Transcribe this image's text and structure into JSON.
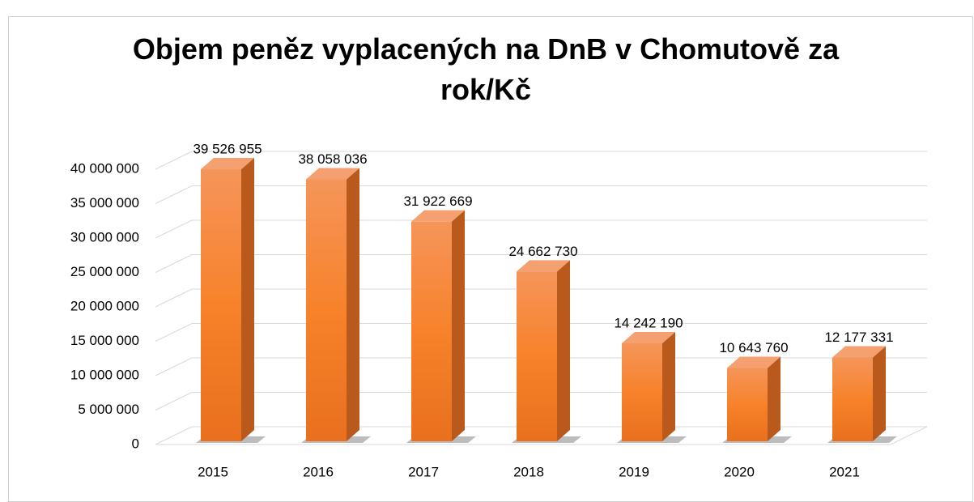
{
  "chart_data": {
    "type": "bar3d",
    "title": "Objem peněz vyplacených na DnB v Chomutově za rok/Kč",
    "categories": [
      "2015",
      "2016",
      "2017",
      "2018",
      "2019",
      "2020",
      "2021"
    ],
    "values": [
      39526955,
      38058036,
      31922669,
      24662730,
      14242190,
      10643760,
      12177331
    ],
    "value_labels": [
      "39 526 955",
      "38 058 036",
      "31 922 669",
      "24 662 730",
      "14 242 190",
      "10 643 760",
      "12 177 331"
    ],
    "color": "#f5812a",
    "ylim": [
      0,
      40000000
    ],
    "yticks": [
      0,
      {
        "value": 5000000,
        "label": "5 000 000"
      },
      {
        "value": 10000000,
        "label": "10 000 000"
      },
      {
        "value": 15000000,
        "label": "15 000 000"
      },
      {
        "value": 20000000,
        "label": "20 000 000"
      },
      {
        "value": 25000000,
        "label": "25 000 000"
      },
      {
        "value": 30000000,
        "label": "30 000 000"
      },
      {
        "value": 35000000,
        "label": "35 000 000"
      },
      {
        "value": 40000000,
        "label": "40 000 000"
      }
    ],
    "grid": true
  }
}
